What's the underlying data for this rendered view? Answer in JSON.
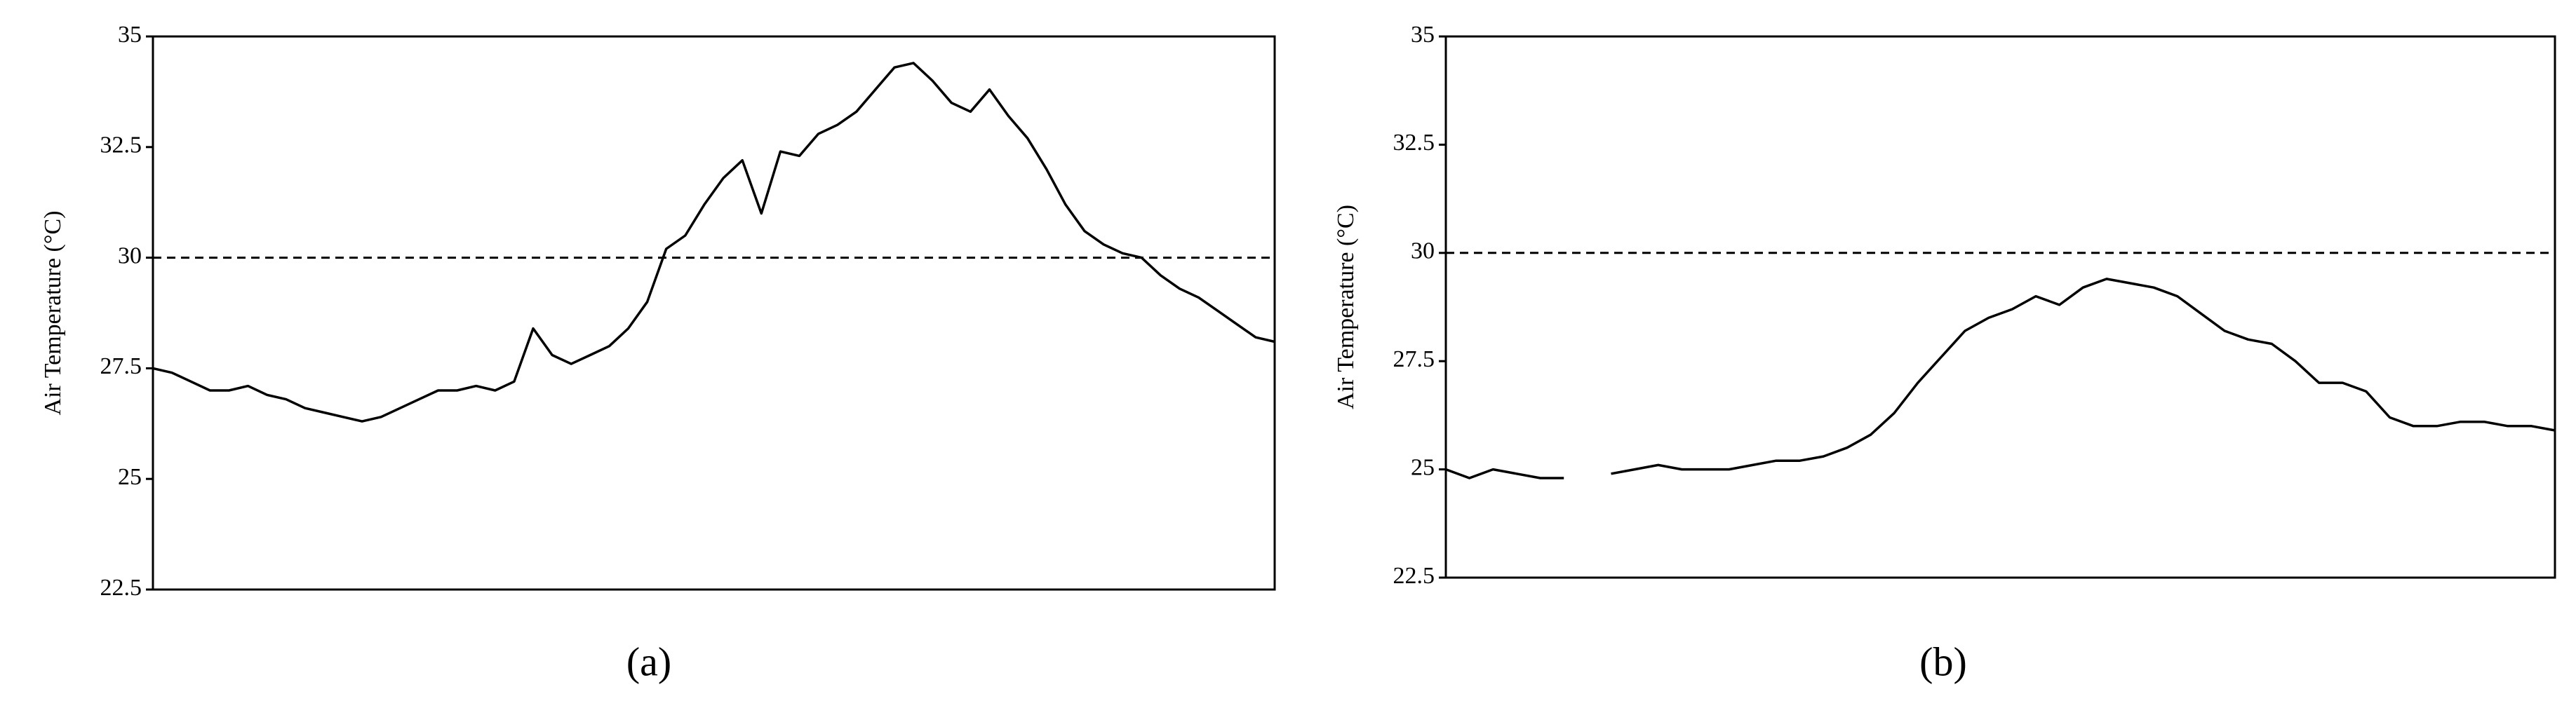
{
  "chart_data": [
    {
      "type": "line",
      "label": "(a)",
      "ylabel": "Air Temperature (°C)",
      "values": [
        27.5,
        27.4,
        27.2,
        27.0,
        27.0,
        27.1,
        26.9,
        26.8,
        26.6,
        26.5,
        26.4,
        26.3,
        26.4,
        26.6,
        26.8,
        27.0,
        27.0,
        27.1,
        27.0,
        27.2,
        28.4,
        27.8,
        27.6,
        27.8,
        28.0,
        28.4,
        29.0,
        30.2,
        30.5,
        31.2,
        31.8,
        32.2,
        31.0,
        32.4,
        32.3,
        32.8,
        33.0,
        33.3,
        33.8,
        34.3,
        34.4,
        34.0,
        33.5,
        33.3,
        33.8,
        33.2,
        32.7,
        32.0,
        31.2,
        30.6,
        30.3,
        30.1,
        30.0,
        29.6,
        29.3,
        29.1,
        28.8,
        28.5,
        28.2,
        28.1
      ],
      "color": "#000000",
      "reference_line": 30,
      "ylim": [
        22.5,
        35
      ],
      "yticks": [
        22.5,
        25,
        27.5,
        30,
        32.5,
        35
      ]
    },
    {
      "type": "line",
      "label": "(b)",
      "ylabel": "Air Temperature (°C)",
      "values": [
        25.0,
        24.8,
        25.0,
        24.9,
        24.8,
        24.8,
        null,
        24.9,
        25.0,
        25.1,
        25.0,
        25.0,
        25.0,
        25.1,
        25.2,
        25.2,
        25.3,
        25.5,
        25.8,
        26.3,
        27.0,
        27.6,
        28.2,
        28.5,
        28.7,
        29.0,
        28.8,
        29.2,
        29.4,
        29.3,
        29.2,
        29.0,
        28.6,
        28.2,
        28.0,
        27.9,
        27.5,
        27.0,
        27.0,
        26.8,
        26.2,
        26.0,
        26.0,
        26.1,
        26.1,
        26.0,
        26.0,
        25.9
      ],
      "color": "#000000",
      "reference_line": 30,
      "ylim": [
        22.5,
        35
      ],
      "yticks": [
        22.5,
        25,
        27.5,
        30,
        32.5,
        35
      ]
    }
  ]
}
